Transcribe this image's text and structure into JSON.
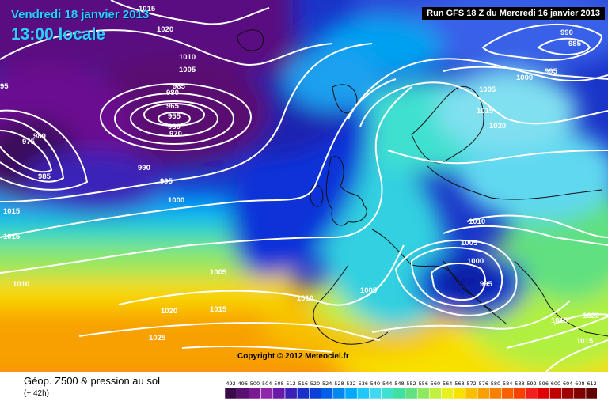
{
  "header": {
    "date": "Vendredi 18 janvier 2013",
    "time": "13:00 locale",
    "run": "Run GFS 18 Z du Mercredi 16 janvier 2013"
  },
  "copyright": "Copyright © 2012 Meteociel.fr",
  "footer": {
    "title": "Géop. Z500 & pression au sol",
    "subtitle": "(+ 42h)"
  },
  "scale": {
    "labels": [
      "492",
      "496",
      "500",
      "504",
      "508",
      "512",
      "516",
      "520",
      "524",
      "528",
      "532",
      "536",
      "540",
      "544",
      "548",
      "552",
      "556",
      "560",
      "564",
      "568",
      "572",
      "576",
      "580",
      "584",
      "588",
      "592",
      "596",
      "600",
      "604",
      "608",
      "612"
    ],
    "colors": [
      "#3a0a4a",
      "#5a1070",
      "#7a1a90",
      "#8e2aa8",
      "#6a1aa8",
      "#3a22b8",
      "#1a30c8",
      "#0a40d8",
      "#0060e8",
      "#0088f0",
      "#00aaf8",
      "#20c8f8",
      "#40d8f0",
      "#40e0d0",
      "#40e0a0",
      "#60e080",
      "#90e860",
      "#c0f040",
      "#e8f020",
      "#f8e000",
      "#f8c000",
      "#f8a000",
      "#f88000",
      "#f86000",
      "#f84000",
      "#f02020",
      "#e00000",
      "#c00000",
      "#a00000",
      "#800000",
      "#600000"
    ]
  },
  "isobar_labels": [
    "1015",
    "1020",
    "1010",
    "1005",
    "995",
    "985",
    "980",
    "975",
    "965",
    "955",
    "960",
    "970",
    "990",
    "1000",
    "1005",
    "1015",
    "1010",
    "1020",
    "1025",
    "975",
    "980",
    "985",
    "95",
    "1015",
    "1010",
    "1005",
    "1010",
    "1020",
    "1015",
    "990",
    "985",
    "1000",
    "995",
    "1005",
    "1015",
    "1020",
    "1010",
    "1005",
    "1000",
    "995",
    "1015",
    "1020",
    "1015"
  ]
}
